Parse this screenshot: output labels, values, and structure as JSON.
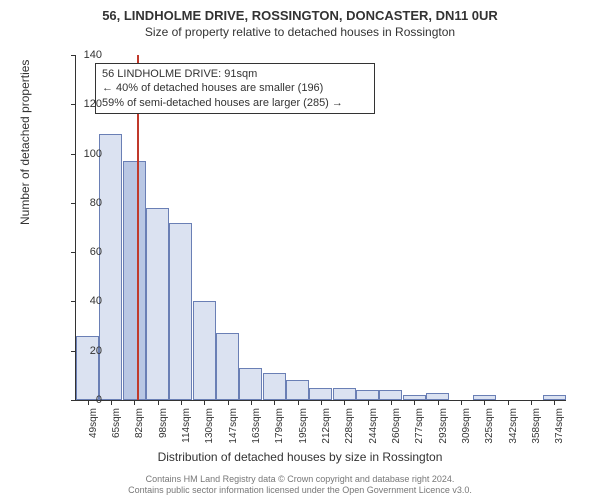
{
  "title": "56, LINDHOLME DRIVE, ROSSINGTON, DONCASTER, DN11 0UR",
  "subtitle": "Size of property relative to detached houses in Rossington",
  "ylabel": "Number of detached properties",
  "xlabel": "Distribution of detached houses by size in Rossington",
  "chart": {
    "type": "histogram",
    "ylim": [
      0,
      140
    ],
    "ytick_step": 20,
    "yticks": [
      0,
      20,
      40,
      60,
      80,
      100,
      120,
      140
    ],
    "categories": [
      "49sqm",
      "65sqm",
      "82sqm",
      "98sqm",
      "114sqm",
      "130sqm",
      "147sqm",
      "163sqm",
      "179sqm",
      "195sqm",
      "212sqm",
      "228sqm",
      "244sqm",
      "260sqm",
      "277sqm",
      "293sqm",
      "309sqm",
      "325sqm",
      "342sqm",
      "358sqm",
      "374sqm"
    ],
    "values": [
      26,
      108,
      97,
      78,
      72,
      40,
      27,
      13,
      11,
      8,
      5,
      5,
      4,
      4,
      2,
      3,
      0,
      2,
      0,
      0,
      2
    ],
    "bar_fill": "#dbe2f1",
    "bar_fill_highlight": "#b9c7e4",
    "bar_border": "#6a7fb5",
    "highlight_index": 2,
    "marker_line_color": "#c0392b",
    "marker_position": 0.125,
    "background_color": "#ffffff",
    "axis_color": "#333333",
    "label_fontsize": 12,
    "tick_fontsize": 10
  },
  "annotation": {
    "line1": "56 LINDHOLME DRIVE: 91sqm",
    "line2": "← 40% of detached houses are smaller (196)",
    "line3": "59% of semi-detached houses are larger (285) →",
    "border_color": "#333333",
    "background": "#ffffff"
  },
  "footer": {
    "line1": "Contains HM Land Registry data © Crown copyright and database right 2024.",
    "line2": "Contains public sector information licensed under the Open Government Licence v3.0."
  }
}
